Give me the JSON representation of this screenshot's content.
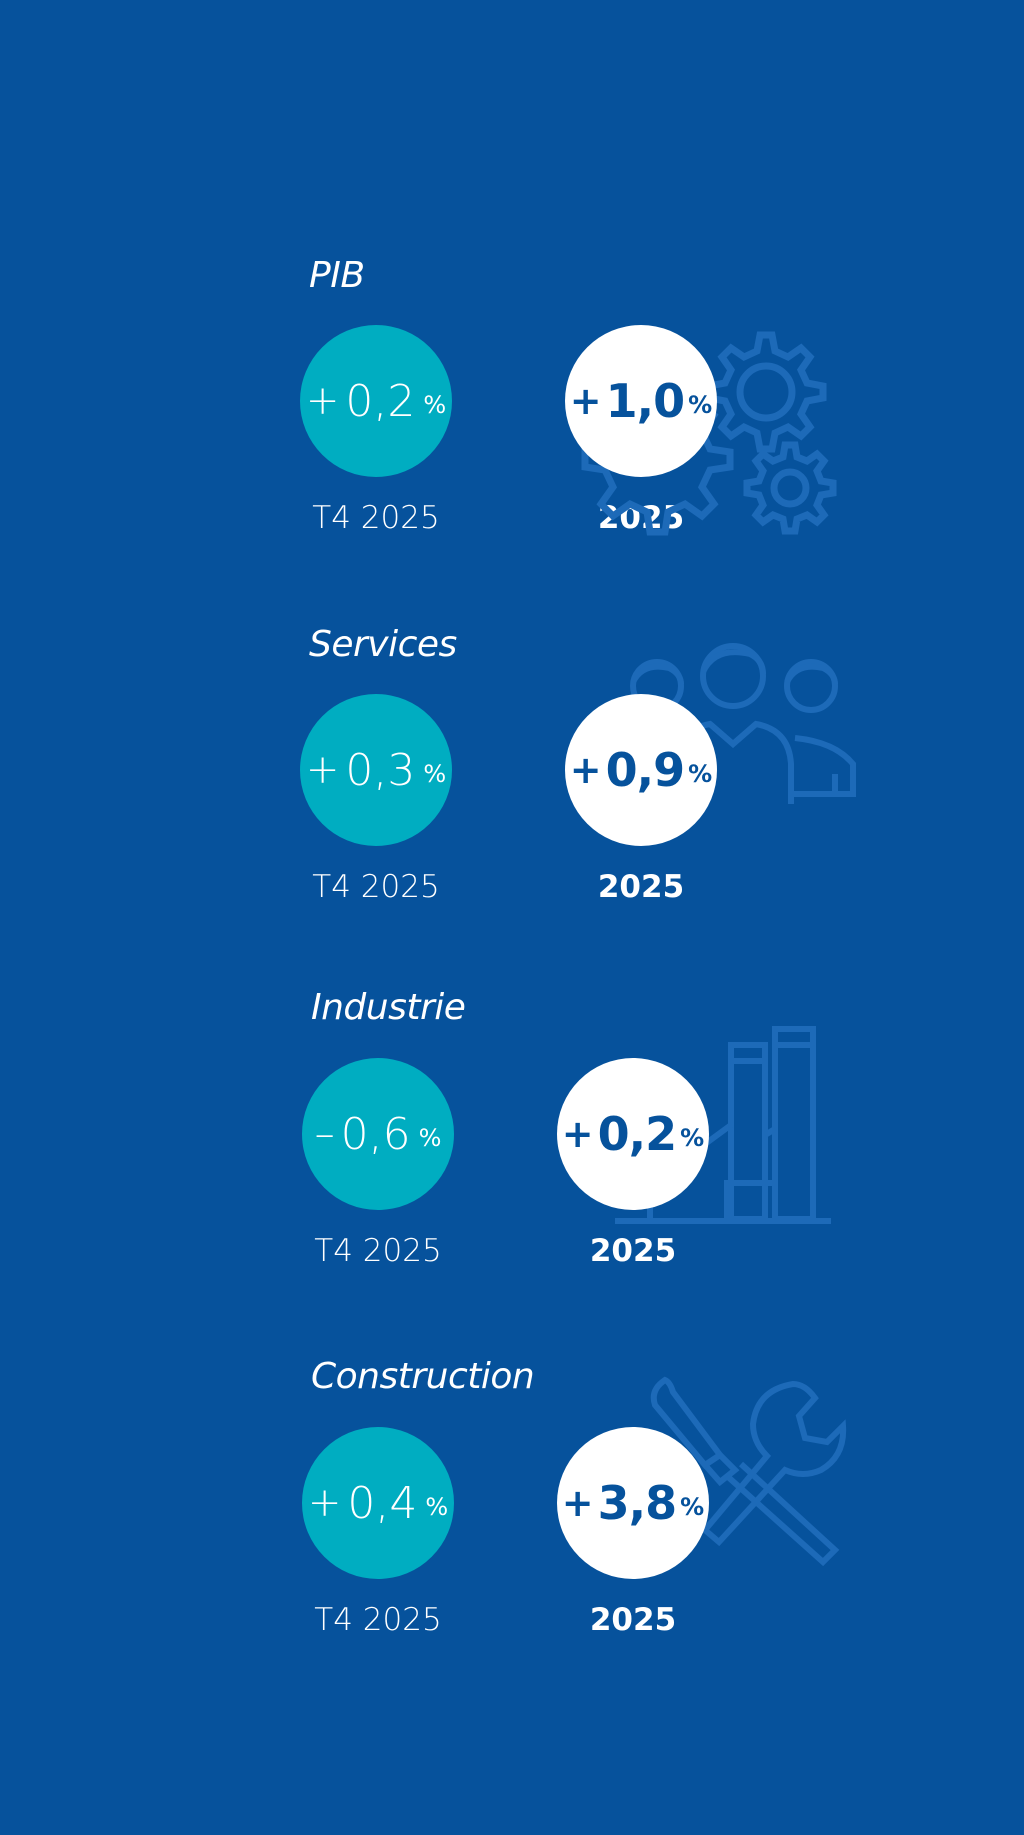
{
  "background_color": "#06529c",
  "accent_colors": {
    "quarter_circle": "#00adc1",
    "year_circle": "#ffffff",
    "icon_outline": "#1d6ab8"
  },
  "sections": [
    {
      "title": "PIB",
      "quarter": {
        "sign": "+",
        "value": "0,2",
        "unit": "%",
        "label": "T4 2025"
      },
      "year": {
        "sign": "+",
        "value": "1,0",
        "unit": "%",
        "label": "2025"
      },
      "icon": "gears-icon"
    },
    {
      "title": "Services",
      "quarter": {
        "sign": "+",
        "value": "0,3",
        "unit": "%",
        "label": "T4 2025"
      },
      "year": {
        "sign": "+",
        "value": "0,9",
        "unit": "%",
        "label": "2025"
      },
      "icon": "people-icon"
    },
    {
      "title": "Industrie",
      "quarter": {
        "sign": "–",
        "value": "0,6",
        "unit": "%",
        "label": "T4 2025"
      },
      "year": {
        "sign": "+",
        "value": "0,2",
        "unit": "%",
        "label": "2025"
      },
      "icon": "factory-icon"
    },
    {
      "title": "Construction",
      "quarter": {
        "sign": "+",
        "value": "0,4",
        "unit": "%",
        "label": "T4 2025"
      },
      "year": {
        "sign": "+",
        "value": "3,8",
        "unit": "%",
        "label": "2025"
      },
      "icon": "tools-icon"
    }
  ]
}
